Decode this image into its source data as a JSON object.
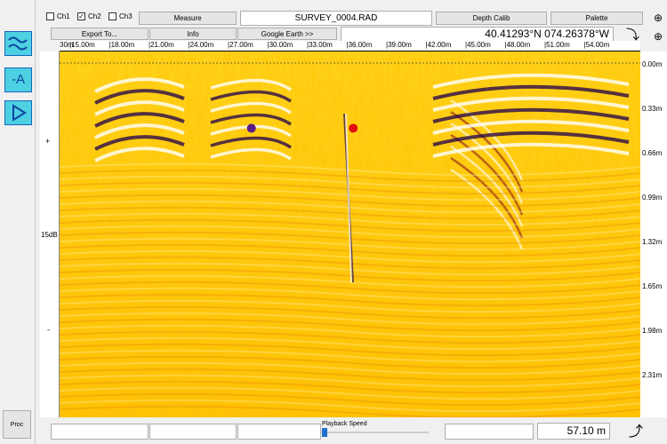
{
  "channels": [
    {
      "label": "Ch1",
      "checked": false
    },
    {
      "label": "Ch2",
      "checked": true
    },
    {
      "label": "Ch3",
      "checked": false
    }
  ],
  "toolbar": {
    "measure": "Measure",
    "filename": "SURVEY_0004.RAD",
    "depth_calib": "Depth Calib",
    "palette": "Palette",
    "export": "Export To...",
    "info": "Info",
    "google_earth": "Google Earth >>",
    "coordinates": "40.41293°N 074.26378°W"
  },
  "ruler_labels": [
    "30m",
    "15.00m",
    "18.00m",
    "21.00m",
    "24.00m",
    "27.00m",
    "30.00m",
    "33.00m",
    "36.00m",
    "39.00m",
    "42.00m",
    "45.00m",
    "48.00m",
    "51.00m",
    "54.00m"
  ],
  "depth_labels": [
    "0.00m",
    "0.33m",
    "0.66m",
    "0.99m",
    "1.32m",
    "1.65m",
    "1.98m",
    "2.31m"
  ],
  "gain": {
    "plus": "+",
    "value": "15dB",
    "minus": "-"
  },
  "markers": [
    {
      "color": "#5a1a8c",
      "distance_m": 27.3,
      "depth_m": 0.46
    },
    {
      "color": "#e01010",
      "distance_m": 35.1,
      "depth_m": 0.46
    }
  ],
  "bottom": {
    "playback_label": "Playback Speed",
    "distance": "57.10 m",
    "proc": "Proc"
  },
  "colors": {
    "accent": "#4dd0e1",
    "gpr_light": "#ffd700",
    "gpr_dark": "#2a0a4a"
  }
}
